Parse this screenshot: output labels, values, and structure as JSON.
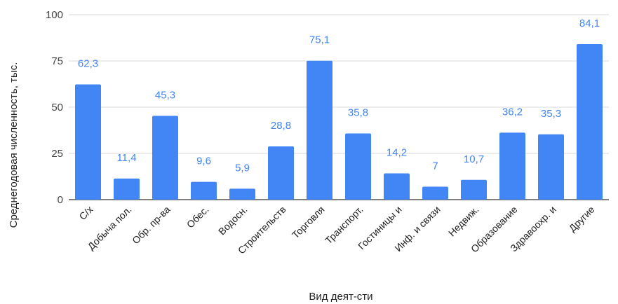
{
  "chart_data": {
    "type": "bar",
    "title": "",
    "xlabel": "Вид деят-сти",
    "ylabel": "Среднегодовая численность, тыс.",
    "ylim": [
      0,
      100
    ],
    "yticks": [
      0,
      25,
      50,
      75,
      100
    ],
    "grid": true,
    "legend": "none",
    "bar_color": "#4285f4",
    "label_color": "#4285f4",
    "categories": [
      "С/х",
      "Добыча пол.",
      "Обр. пр-ва",
      "Обес.",
      "Водосн.",
      "Строительств",
      "Торговля",
      "Транспорт.",
      "Гостиницы и",
      "Инф. и связи",
      "Недвиж.",
      "Образование",
      "Здравоохр. и",
      "Другие"
    ],
    "values": [
      62.3,
      11.4,
      45.3,
      9.6,
      5.9,
      28.8,
      75.1,
      35.8,
      14.2,
      7,
      10.7,
      36.2,
      35.3,
      84.1
    ],
    "value_labels": [
      "62,3",
      "11,4",
      "45,3",
      "9,6",
      "5,9",
      "28,8",
      "75,1",
      "35,8",
      "14,2",
      "7",
      "10,7",
      "36,2",
      "35,3",
      "84,1"
    ]
  }
}
